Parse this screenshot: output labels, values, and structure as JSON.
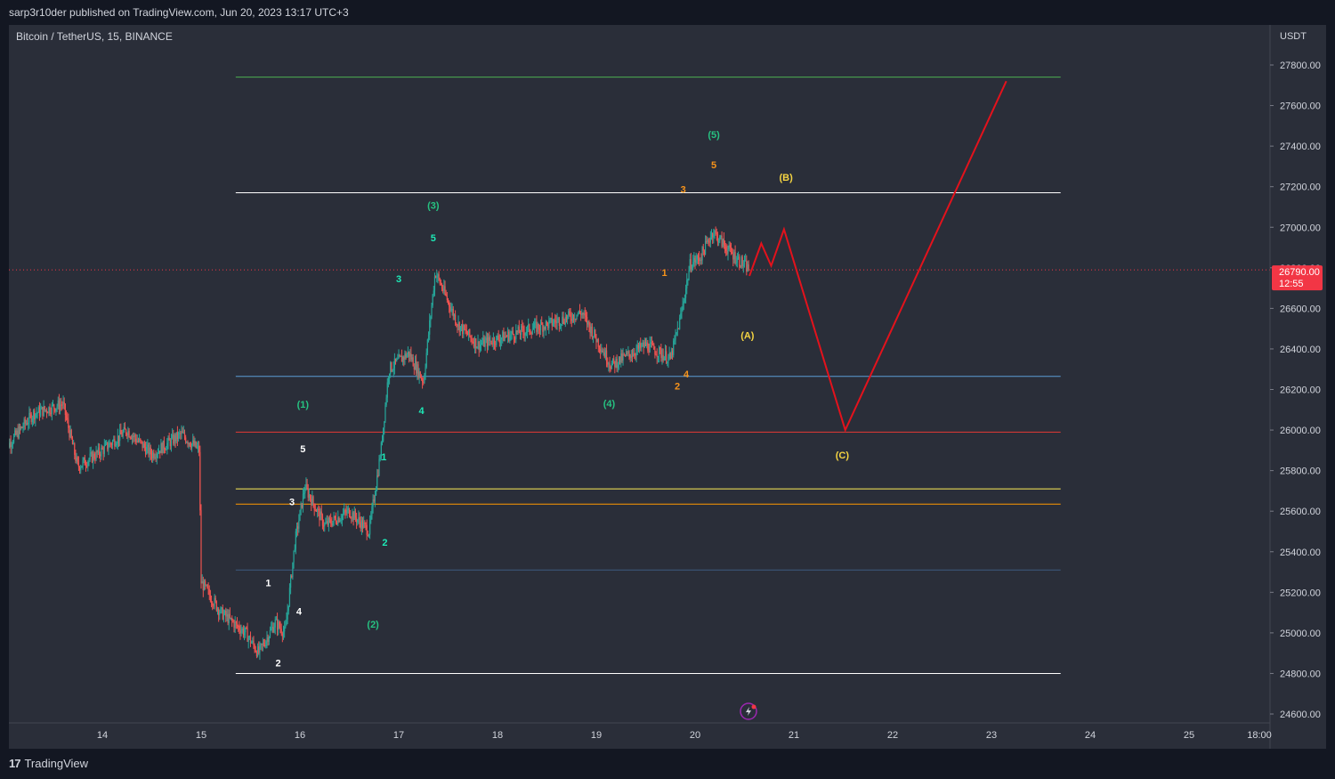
{
  "header": {
    "published_line": "sarp3r10der published on TradingView.com, Jun 20, 2023 13:17 UTC+3"
  },
  "footer": {
    "brand": "TradingView"
  },
  "colors": {
    "up": "#26a69a",
    "down": "#ef5350",
    "projection": "#e3121c",
    "price_badge": "#f23645"
  },
  "chart_data": {
    "type": "candlestick",
    "symbol_line": "Bitcoin / TetherUS, 15, BINANCE",
    "currency": "USDT",
    "ylim": [
      24550,
      27880
    ],
    "y_ticks": [
      "27800.00",
      "27600.00",
      "27400.00",
      "27200.00",
      "27000.00",
      "26800.00",
      "26600.00",
      "26400.00",
      "26200.00",
      "26000.00",
      "25800.00",
      "25600.00",
      "25400.00",
      "25200.00",
      "25000.00",
      "24800.00",
      "24600.00"
    ],
    "x_ticks": [
      "14",
      "15",
      "16",
      "17",
      "18",
      "19",
      "20",
      "21",
      "22",
      "23",
      "24",
      "25",
      "18:00"
    ],
    "current_price": {
      "label": "26790.00",
      "countdown": "12:55",
      "value": 26790
    },
    "price_path": [
      {
        "day": 13.0,
        "price": 25900
      },
      {
        "day": 13.3,
        "price": 26080
      },
      {
        "day": 13.6,
        "price": 26130
      },
      {
        "day": 13.75,
        "price": 25820
      },
      {
        "day": 14.0,
        "price": 25900
      },
      {
        "day": 14.25,
        "price": 26000
      },
      {
        "day": 14.5,
        "price": 25880
      },
      {
        "day": 14.8,
        "price": 25980
      },
      {
        "day": 14.98,
        "price": 25900
      },
      {
        "day": 15.0,
        "price": 25250
      },
      {
        "day": 15.2,
        "price": 25100
      },
      {
        "day": 15.45,
        "price": 25000
      },
      {
        "day": 15.58,
        "price": 24900
      },
      {
        "day": 15.75,
        "price": 25050
      },
      {
        "day": 15.85,
        "price": 25000
      },
      {
        "day": 15.95,
        "price": 25450
      },
      {
        "day": 16.05,
        "price": 25720
      },
      {
        "day": 16.25,
        "price": 25530
      },
      {
        "day": 16.5,
        "price": 25600
      },
      {
        "day": 16.7,
        "price": 25500
      },
      {
        "day": 16.82,
        "price": 25900
      },
      {
        "day": 16.9,
        "price": 26300
      },
      {
        "day": 17.1,
        "price": 26380
      },
      {
        "day": 17.25,
        "price": 26240
      },
      {
        "day": 17.37,
        "price": 26780
      },
      {
        "day": 17.6,
        "price": 26520
      },
      {
        "day": 17.8,
        "price": 26420
      },
      {
        "day": 18.2,
        "price": 26480
      },
      {
        "day": 18.5,
        "price": 26520
      },
      {
        "day": 18.85,
        "price": 26580
      },
      {
        "day": 19.0,
        "price": 26450
      },
      {
        "day": 19.15,
        "price": 26320
      },
      {
        "day": 19.5,
        "price": 26420
      },
      {
        "day": 19.75,
        "price": 26350
      },
      {
        "day": 19.85,
        "price": 26550
      },
      {
        "day": 19.95,
        "price": 26820
      },
      {
        "day": 20.05,
        "price": 26850
      },
      {
        "day": 20.18,
        "price": 26980
      },
      {
        "day": 20.35,
        "price": 26880
      },
      {
        "day": 20.55,
        "price": 26790
      }
    ],
    "horizontal_levels": [
      {
        "price": 27740,
        "color": "#4caf50",
        "width": 1
      },
      {
        "price": 27170,
        "color": "#ffffff",
        "width": 1
      },
      {
        "price": 26265,
        "color": "#5b9bd5",
        "width": 1
      },
      {
        "price": 25990,
        "color": "#e53935",
        "width": 1
      },
      {
        "price": 25710,
        "color": "#ffee58",
        "width": 1
      },
      {
        "price": 25635,
        "color": "#ff9800",
        "width": 1
      },
      {
        "price": 25310,
        "color": "#3d5a80",
        "width": 1
      },
      {
        "price": 24800,
        "color": "#ffffff",
        "width": 1
      }
    ],
    "projection_path": [
      {
        "day": 20.55,
        "price": 26760
      },
      {
        "day": 20.67,
        "price": 26920
      },
      {
        "day": 20.77,
        "price": 26810
      },
      {
        "day": 20.9,
        "price": 26990
      },
      {
        "day": 21.52,
        "price": 26000
      },
      {
        "day": 23.15,
        "price": 27720
      }
    ],
    "wave_labels": [
      {
        "text": "(1)",
        "day": 16.03,
        "price": 26110,
        "color": "#26c281"
      },
      {
        "text": "(2)",
        "day": 16.74,
        "price": 25025,
        "color": "#26c281"
      },
      {
        "text": "(3)",
        "day": 17.35,
        "price": 27090,
        "color": "#26c281"
      },
      {
        "text": "(4)",
        "day": 19.13,
        "price": 26115,
        "color": "#26c281"
      },
      {
        "text": "(5)",
        "day": 20.19,
        "price": 27440,
        "color": "#26c281"
      },
      {
        "text": "1",
        "day": 15.68,
        "price": 25230,
        "color": "#ffffff"
      },
      {
        "text": "2",
        "day": 15.78,
        "price": 24835,
        "color": "#ffffff"
      },
      {
        "text": "3",
        "day": 15.92,
        "price": 25630,
        "color": "#ffffff"
      },
      {
        "text": "4",
        "day": 15.99,
        "price": 25090,
        "color": "#ffffff"
      },
      {
        "text": "5",
        "day": 16.03,
        "price": 25890,
        "color": "#ffffff"
      },
      {
        "text": "1",
        "day": 16.85,
        "price": 25850,
        "color": "#1de9b6"
      },
      {
        "text": "2",
        "day": 16.86,
        "price": 25430,
        "color": "#1de9b6"
      },
      {
        "text": "3",
        "day": 17.0,
        "price": 26730,
        "color": "#1de9b6"
      },
      {
        "text": "4",
        "day": 17.23,
        "price": 26080,
        "color": "#1de9b6"
      },
      {
        "text": "5",
        "day": 17.35,
        "price": 26930,
        "color": "#1de9b6"
      },
      {
        "text": "1",
        "day": 19.69,
        "price": 26760,
        "color": "#f7931a"
      },
      {
        "text": "2",
        "day": 19.82,
        "price": 26200,
        "color": "#f7931a"
      },
      {
        "text": "3",
        "day": 19.88,
        "price": 27170,
        "color": "#f7931a"
      },
      {
        "text": "4",
        "day": 19.91,
        "price": 26260,
        "color": "#f7931a"
      },
      {
        "text": "5",
        "day": 20.19,
        "price": 27290,
        "color": "#f7931a"
      },
      {
        "text": "(A)",
        "day": 20.53,
        "price": 26450,
        "color": "#f5d442"
      },
      {
        "text": "(B)",
        "day": 20.92,
        "price": 27230,
        "color": "#f5d442"
      },
      {
        "text": "(C)",
        "day": 21.49,
        "price": 25860,
        "color": "#f5d442"
      }
    ]
  }
}
